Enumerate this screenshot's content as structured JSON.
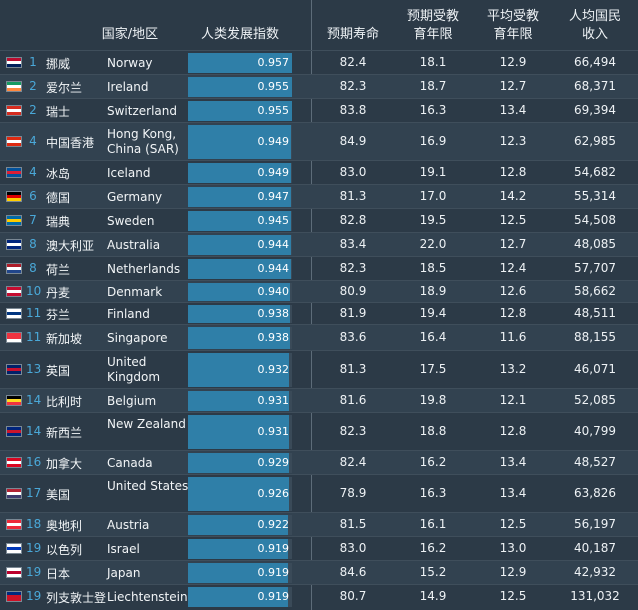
{
  "headers": {
    "country": "国家/地区",
    "hdi": "人类发展指数",
    "life": "预期寿命",
    "exp_school": "预期受教\n育年限",
    "mean_school": "平均受教\n育年限",
    "gni": "人均国民\n收入"
  },
  "chart_data": {
    "type": "table",
    "columns": [
      "rank",
      "country_cn",
      "country_en",
      "hdi",
      "life_expectancy",
      "expected_schooling",
      "mean_schooling",
      "gni_per_capita"
    ],
    "rows": [
      {
        "rank": "1",
        "cn": "挪威",
        "en": "Norway",
        "hdi": "0.957",
        "life": "82.4",
        "exp": "18.1",
        "mean": "12.9",
        "gni": "66,494",
        "flag": [
          "#ba0c2f",
          "#ffffff",
          "#00205b"
        ],
        "h": 24
      },
      {
        "rank": "2",
        "cn": "爱尔兰",
        "en": "Ireland",
        "hdi": "0.955",
        "life": "82.3",
        "exp": "18.7",
        "mean": "12.7",
        "gni": "68,371",
        "flag": [
          "#169b62",
          "#ffffff",
          "#ff883e"
        ],
        "h": 24
      },
      {
        "rank": "2",
        "cn": "瑞士",
        "en": "Switzerland",
        "hdi": "0.955",
        "life": "83.8",
        "exp": "16.3",
        "mean": "13.4",
        "gni": "69,394",
        "flag": [
          "#d52b1e",
          "#ffffff",
          "#d52b1e"
        ],
        "h": 24
      },
      {
        "rank": "4",
        "cn": "中国香港",
        "en": "Hong Kong, China (SAR)",
        "hdi": "0.949",
        "life": "84.9",
        "exp": "16.9",
        "mean": "12.3",
        "gni": "62,985",
        "flag": [
          "#de2910",
          "#ffffff",
          "#de2910"
        ],
        "h": 38
      },
      {
        "rank": "4",
        "cn": "冰岛",
        "en": "Iceland",
        "hdi": "0.949",
        "life": "83.0",
        "exp": "19.1",
        "mean": "12.8",
        "gni": "54,682",
        "flag": [
          "#02529c",
          "#dc1e35",
          "#02529c"
        ],
        "h": 24
      },
      {
        "rank": "6",
        "cn": "德国",
        "en": "Germany",
        "hdi": "0.947",
        "life": "81.3",
        "exp": "17.0",
        "mean": "14.2",
        "gni": "55,314",
        "flag": [
          "#000000",
          "#dd0000",
          "#ffce00"
        ],
        "h": 24
      },
      {
        "rank": "7",
        "cn": "瑞典",
        "en": "Sweden",
        "hdi": "0.945",
        "life": "82.8",
        "exp": "19.5",
        "mean": "12.5",
        "gni": "54,508",
        "flag": [
          "#006aa7",
          "#fecc00",
          "#006aa7"
        ],
        "h": 24
      },
      {
        "rank": "8",
        "cn": "澳大利亚",
        "en": "Australia",
        "hdi": "0.944",
        "life": "83.4",
        "exp": "22.0",
        "mean": "12.7",
        "gni": "48,085",
        "flag": [
          "#00247d",
          "#ffffff",
          "#00247d"
        ],
        "h": 24
      },
      {
        "rank": "8",
        "cn": "荷兰",
        "en": "Netherlands",
        "hdi": "0.944",
        "life": "82.3",
        "exp": "18.5",
        "mean": "12.4",
        "gni": "57,707",
        "flag": [
          "#ae1c28",
          "#ffffff",
          "#21468b"
        ],
        "h": 24
      },
      {
        "rank": "10",
        "cn": "丹麦",
        "en": "Denmark",
        "hdi": "0.940",
        "life": "80.9",
        "exp": "18.9",
        "mean": "12.6",
        "gni": "58,662",
        "flag": [
          "#c60c30",
          "#ffffff",
          "#c60c30"
        ],
        "h": 22
      },
      {
        "rank": "11",
        "cn": "芬兰",
        "en": "Finland",
        "hdi": "0.938",
        "life": "81.9",
        "exp": "19.4",
        "mean": "12.8",
        "gni": "48,511",
        "flag": [
          "#ffffff",
          "#003580",
          "#ffffff"
        ],
        "h": 22
      },
      {
        "rank": "11",
        "cn": "新加坡",
        "en": "Singapore",
        "hdi": "0.938",
        "life": "83.6",
        "exp": "16.4",
        "mean": "11.6",
        "gni": "88,155",
        "flag": [
          "#ef3340",
          "#ef3340",
          "#ffffff"
        ],
        "h": 26
      },
      {
        "rank": "13",
        "cn": "英国",
        "en": "United Kingdom",
        "hdi": "0.932",
        "life": "81.3",
        "exp": "17.5",
        "mean": "13.2",
        "gni": "46,071",
        "flag": [
          "#012169",
          "#c8102e",
          "#012169"
        ],
        "h": 38
      },
      {
        "rank": "14",
        "cn": "比利时",
        "en": "Belgium",
        "hdi": "0.931",
        "life": "81.6",
        "exp": "19.8",
        "mean": "12.1",
        "gni": "52,085",
        "flag": [
          "#000000",
          "#fdda24",
          "#ef3340"
        ],
        "h": 24
      },
      {
        "rank": "14",
        "cn": "新西兰",
        "en": "New Zealand",
        "hdi": "0.931",
        "life": "82.3",
        "exp": "18.8",
        "mean": "12.8",
        "gni": "40,799",
        "flag": [
          "#00247d",
          "#cc142b",
          "#00247d"
        ],
        "h": 38
      },
      {
        "rank": "16",
        "cn": "加拿大",
        "en": "Canada",
        "hdi": "0.929",
        "life": "82.4",
        "exp": "16.2",
        "mean": "13.4",
        "gni": "48,527",
        "flag": [
          "#d80621",
          "#ffffff",
          "#d80621"
        ],
        "h": 24
      },
      {
        "rank": "17",
        "cn": "美国",
        "en": "United States",
        "hdi": "0.926",
        "life": "78.9",
        "exp": "16.3",
        "mean": "13.4",
        "gni": "63,826",
        "flag": [
          "#b22234",
          "#ffffff",
          "#3c3b6e"
        ],
        "h": 38
      },
      {
        "rank": "18",
        "cn": "奥地利",
        "en": "Austria",
        "hdi": "0.922",
        "life": "81.5",
        "exp": "16.1",
        "mean": "12.5",
        "gni": "56,197",
        "flag": [
          "#ed2939",
          "#ffffff",
          "#ed2939"
        ],
        "h": 24
      },
      {
        "rank": "19",
        "cn": "以色列",
        "en": "Israel",
        "hdi": "0.919",
        "life": "83.0",
        "exp": "16.2",
        "mean": "13.0",
        "gni": "40,187",
        "flag": [
          "#ffffff",
          "#0038b8",
          "#ffffff"
        ],
        "h": 24
      },
      {
        "rank": "19",
        "cn": "日本",
        "en": "Japan",
        "hdi": "0.919",
        "life": "84.6",
        "exp": "15.2",
        "mean": "12.9",
        "gni": "42,932",
        "flag": [
          "#ffffff",
          "#bc002d",
          "#ffffff"
        ],
        "h": 24
      },
      {
        "rank": "19",
        "cn": "列支敦士登",
        "en": "Liechtenstein",
        "hdi": "0.919",
        "life": "80.7",
        "exp": "14.9",
        "mean": "12.5",
        "gni": "131,032",
        "flag": [
          "#002b7f",
          "#ce1126",
          "#ce1126"
        ],
        "h": 24
      }
    ]
  }
}
